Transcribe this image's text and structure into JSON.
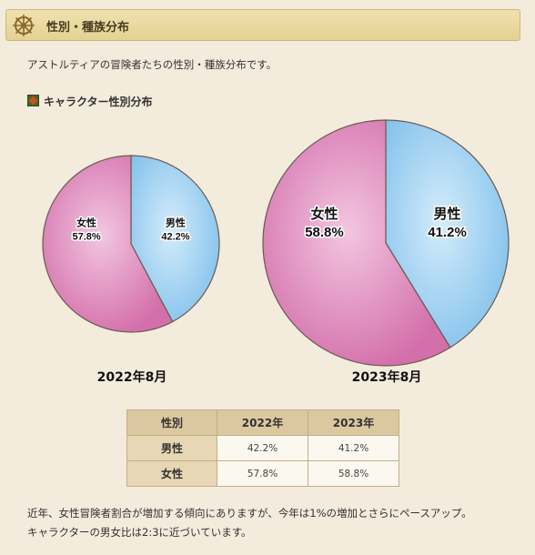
{
  "header": {
    "title": "性別・種族分布"
  },
  "intro": "アストルティアの冒険者たちの性別・種族分布です。",
  "section": {
    "title": "キャラクター性別分布"
  },
  "colors": {
    "female": "#e69ac7",
    "male": "#9fd0f0",
    "header_bg": "#e8d9a0"
  },
  "chart_data": [
    {
      "type": "pie",
      "title": "2022年8月",
      "slices": [
        {
          "name": "男性",
          "value": 42.2,
          "label": "42.2%"
        },
        {
          "name": "女性",
          "value": 57.8,
          "label": "57.8%"
        }
      ]
    },
    {
      "type": "pie",
      "title": "2023年8月",
      "slices": [
        {
          "name": "男性",
          "value": 41.2,
          "label": "41.2%"
        },
        {
          "name": "女性",
          "value": 58.8,
          "label": "58.8%"
        }
      ]
    }
  ],
  "table": {
    "headers": [
      "性別",
      "2022年",
      "2023年"
    ],
    "rows": [
      {
        "label": "男性",
        "y2022": "42.2%",
        "y2023": "41.2%"
      },
      {
        "label": "女性",
        "y2022": "57.8%",
        "y2023": "58.8%"
      }
    ]
  },
  "notes": [
    "近年、女性冒険者割合が増加する傾向にありますが、今年は1%の増加とさらにペースアップ。",
    "キャラクターの男女比は2:3に近づいています。"
  ]
}
